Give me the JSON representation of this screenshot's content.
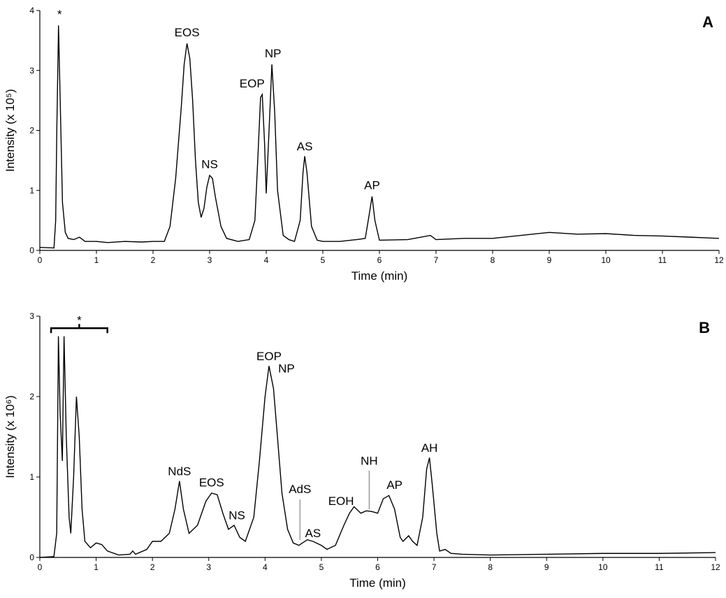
{
  "chart_data": [
    {
      "type": "line",
      "panel_label": "A",
      "xlabel": "Time (min)",
      "ylabel": "Intensity (x 10⁵)",
      "xlim": [
        0,
        12
      ],
      "xticks": [
        0,
        1,
        2,
        3,
        4,
        5,
        6,
        7,
        8,
        9,
        10,
        11,
        12
      ],
      "ylim": [
        0,
        4
      ],
      "yticks": [
        0,
        1,
        2,
        3,
        4
      ],
      "color": "#000000",
      "x": [
        0,
        0.25,
        0.28,
        0.3,
        0.33,
        0.36,
        0.4,
        0.45,
        0.5,
        0.6,
        0.7,
        0.8,
        1.0,
        1.2,
        1.5,
        1.8,
        2.0,
        2.2,
        2.3,
        2.4,
        2.5,
        2.55,
        2.6,
        2.65,
        2.7,
        2.75,
        2.8,
        2.85,
        2.9,
        2.95,
        3.0,
        3.05,
        3.1,
        3.2,
        3.3,
        3.5,
        3.7,
        3.8,
        3.85,
        3.9,
        3.93,
        3.97,
        4.0,
        4.05,
        4.1,
        4.15,
        4.2,
        4.3,
        4.4,
        4.5,
        4.6,
        4.65,
        4.68,
        4.72,
        4.8,
        4.9,
        5.0,
        5.3,
        5.6,
        5.75,
        5.82,
        5.87,
        5.92,
        6.0,
        6.5,
        6.9,
        7.0,
        7.5,
        8,
        8.5,
        9,
        9.5,
        10,
        10.5,
        11,
        11.5,
        12
      ],
      "values": [
        0.05,
        0.04,
        0.5,
        2.0,
        3.75,
        2.5,
        0.8,
        0.3,
        0.2,
        0.18,
        0.22,
        0.15,
        0.15,
        0.13,
        0.15,
        0.14,
        0.15,
        0.15,
        0.4,
        1.2,
        2.4,
        3.1,
        3.45,
        3.2,
        2.5,
        1.5,
        0.8,
        0.55,
        0.7,
        1.05,
        1.25,
        1.2,
        0.9,
        0.4,
        0.2,
        0.15,
        0.18,
        0.5,
        1.5,
        2.55,
        2.6,
        1.8,
        0.95,
        2.0,
        3.1,
        2.3,
        1.0,
        0.25,
        0.18,
        0.15,
        0.5,
        1.3,
        1.57,
        1.3,
        0.4,
        0.17,
        0.15,
        0.15,
        0.18,
        0.2,
        0.6,
        0.9,
        0.5,
        0.17,
        0.18,
        0.25,
        0.18,
        0.2,
        0.2,
        0.25,
        0.3,
        0.27,
        0.28,
        0.25,
        0.24,
        0.22,
        0.2
      ],
      "annotations": [
        {
          "text": "*",
          "x": 0.35,
          "y": 3.8
        },
        {
          "text": "EOS",
          "x": 2.6,
          "y": 3.5
        },
        {
          "text": "NS",
          "x": 3.0,
          "y": 1.3
        },
        {
          "text": "EOP",
          "x": 3.75,
          "y": 2.65
        },
        {
          "text": "NP",
          "x": 4.12,
          "y": 3.15
        },
        {
          "text": "AS",
          "x": 4.68,
          "y": 1.6
        },
        {
          "text": "AP",
          "x": 5.87,
          "y": 0.95
        }
      ]
    },
    {
      "type": "line",
      "panel_label": "B",
      "xlabel": "Time (min)",
      "ylabel": "Intensity (x 10⁶)",
      "xlim": [
        0,
        12
      ],
      "xticks": [
        0,
        1,
        2,
        3,
        4,
        5,
        6,
        7,
        8,
        9,
        10,
        11,
        12
      ],
      "ylim": [
        0,
        3
      ],
      "yticks": [
        0,
        1,
        2,
        3
      ],
      "color": "#000000",
      "x": [
        0,
        0.25,
        0.3,
        0.33,
        0.36,
        0.4,
        0.43,
        0.47,
        0.52,
        0.55,
        0.6,
        0.65,
        0.7,
        0.75,
        0.8,
        0.9,
        1.0,
        1.1,
        1.2,
        1.4,
        1.6,
        1.65,
        1.7,
        1.9,
        2.0,
        2.15,
        2.3,
        2.4,
        2.48,
        2.55,
        2.65,
        2.8,
        2.95,
        3.05,
        3.15,
        3.25,
        3.35,
        3.45,
        3.55,
        3.65,
        3.8,
        3.9,
        4.0,
        4.07,
        4.15,
        4.22,
        4.3,
        4.4,
        4.5,
        4.6,
        4.75,
        4.85,
        5.0,
        5.1,
        5.25,
        5.4,
        5.5,
        5.58,
        5.7,
        5.8,
        5.9,
        6.0,
        6.1,
        6.2,
        6.3,
        6.4,
        6.45,
        6.55,
        6.62,
        6.7,
        6.8,
        6.87,
        6.92,
        6.97,
        7.05,
        7.1,
        7.2,
        7.3,
        7.5,
        8,
        9,
        10,
        11,
        12
      ],
      "values": [
        0.0,
        0.01,
        0.3,
        2.75,
        1.8,
        1.2,
        2.75,
        1.5,
        0.5,
        0.3,
        1.0,
        2.0,
        1.5,
        0.6,
        0.2,
        0.12,
        0.18,
        0.16,
        0.08,
        0.03,
        0.04,
        0.08,
        0.04,
        0.1,
        0.2,
        0.2,
        0.3,
        0.6,
        0.95,
        0.6,
        0.3,
        0.4,
        0.7,
        0.8,
        0.78,
        0.55,
        0.35,
        0.4,
        0.25,
        0.2,
        0.5,
        1.2,
        2.0,
        2.38,
        2.1,
        1.5,
        0.8,
        0.35,
        0.18,
        0.15,
        0.22,
        0.2,
        0.15,
        0.1,
        0.15,
        0.4,
        0.55,
        0.63,
        0.55,
        0.58,
        0.57,
        0.55,
        0.73,
        0.77,
        0.6,
        0.25,
        0.2,
        0.27,
        0.2,
        0.15,
        0.5,
        1.1,
        1.24,
        0.9,
        0.3,
        0.08,
        0.1,
        0.05,
        0.04,
        0.03,
        0.04,
        0.05,
        0.05,
        0.06
      ],
      "bracket": {
        "text": "*",
        "xrange": [
          0.2,
          1.2
        ],
        "y": 2.85
      },
      "annotations": [
        {
          "text": "NdS",
          "x": 2.48,
          "y": 0.97
        },
        {
          "text": "EOS",
          "x": 3.05,
          "y": 0.83
        },
        {
          "text": "NS",
          "x": 3.5,
          "y": 0.42
        },
        {
          "text": "EOP",
          "x": 4.07,
          "y": 2.4
        },
        {
          "text": "NP",
          "x": 4.38,
          "y": 2.25
        },
        {
          "text": "AdS",
          "x": 4.62,
          "y": 0.75,
          "leader": [
            0.22,
            0.72
          ]
        },
        {
          "text": "AS",
          "x": 4.85,
          "y": 0.2
        },
        {
          "text": "EOH",
          "x": 5.35,
          "y": 0.6
        },
        {
          "text": "NH",
          "x": 5.85,
          "y": 1.1,
          "leader": [
            0.6,
            1.08
          ]
        },
        {
          "text": "AP",
          "x": 6.3,
          "y": 0.8
        },
        {
          "text": "AH",
          "x": 6.92,
          "y": 1.26
        }
      ]
    }
  ]
}
